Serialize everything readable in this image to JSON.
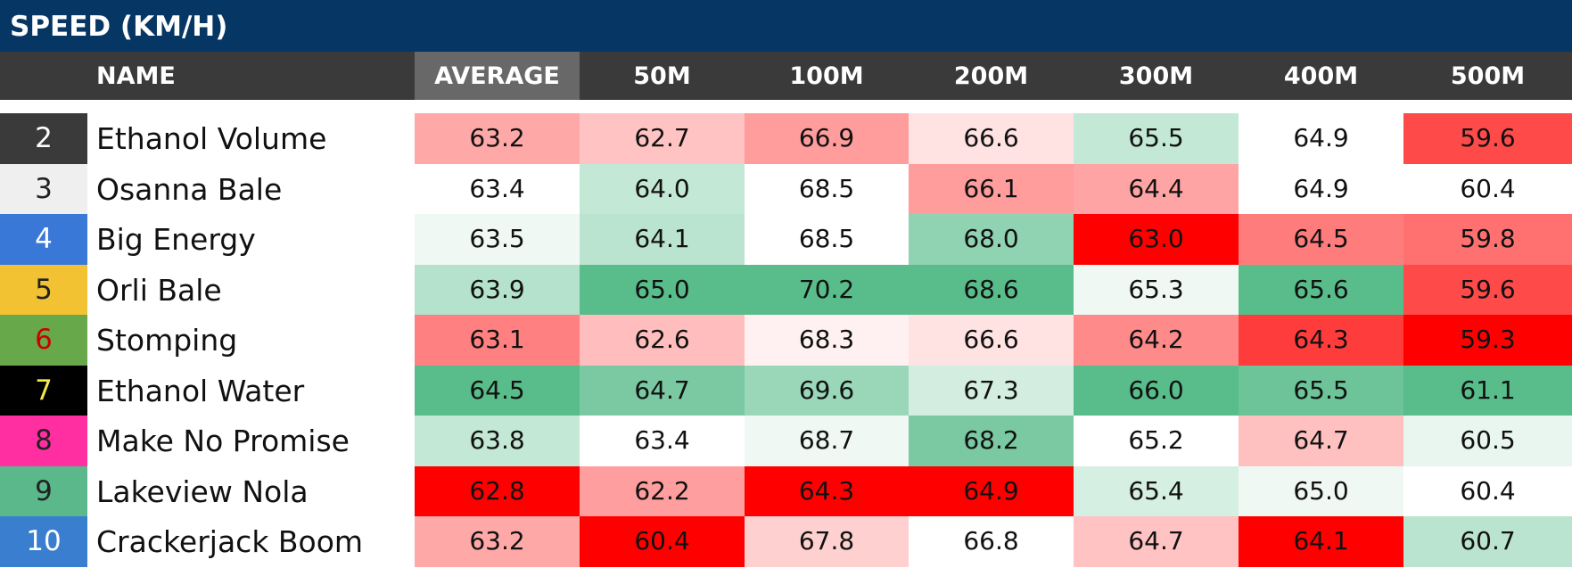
{
  "title": "SPEED (KM/H)",
  "chart_data": {
    "type": "table",
    "title": "SPEED (KM/H)",
    "columns": [
      "NAME",
      "AVERAGE",
      "50M",
      "100M",
      "200M",
      "300M",
      "400M",
      "500M"
    ],
    "rows": [
      {
        "number": "2",
        "name": "Ethanol Volume",
        "values": [
          "63.2",
          "62.7",
          "66.9",
          "66.6",
          "65.5",
          "64.9",
          "59.6"
        ],
        "colors": [
          "#ffa8a8",
          "#ffc3c3",
          "#ff9c9c",
          "#ffe3e3",
          "#c3e8d5",
          "#ffffff",
          "#ff4a4a"
        ],
        "num_bg": "#3a3a3a",
        "num_color": "#ffffff"
      },
      {
        "number": "3",
        "name": "Osanna Bale",
        "values": [
          "63.4",
          "64.0",
          "68.5",
          "66.1",
          "64.4",
          "64.9",
          "60.4"
        ],
        "colors": [
          "#ffffff",
          "#c3e8d5",
          "#ffffff",
          "#ff9c9c",
          "#ffa4a4",
          "#ffffff",
          "#ffffff"
        ],
        "num_bg": "#efefef",
        "num_color": "#222222"
      },
      {
        "number": "4",
        "name": "Big Energy",
        "values": [
          "63.5",
          "64.1",
          "68.5",
          "68.0",
          "63.0",
          "64.5",
          "59.8"
        ],
        "colors": [
          "#eff8f3",
          "#bae4cf",
          "#ffffff",
          "#8fd3b2",
          "#ff0000",
          "#ff7c7c",
          "#ff7070"
        ],
        "num_bg": "#3a78d8",
        "num_color": "#ffffff"
      },
      {
        "number": "5",
        "name": "Orli Bale",
        "values": [
          "63.9",
          "65.0",
          "70.2",
          "68.6",
          "65.3",
          "65.6",
          "59.6"
        ],
        "colors": [
          "#b5e2cc",
          "#58bd8b",
          "#58bd8b",
          "#58bd8b",
          "#eff8f3",
          "#58bd8b",
          "#ff4a4a"
        ],
        "num_bg": "#f2c232",
        "num_color": "#222222"
      },
      {
        "number": "6",
        "name": "Stomping",
        "values": [
          "63.1",
          "62.6",
          "68.3",
          "66.6",
          "64.2",
          "64.3",
          "59.3"
        ],
        "colors": [
          "#ff8080",
          "#ffbdbd",
          "#fff1f1",
          "#ffe3e3",
          "#ff8a8a",
          "#ff3c3c",
          "#ff0000"
        ],
        "num_bg": "#67a84a",
        "num_color": "#cc0000"
      },
      {
        "number": "7",
        "name": "Ethanol Water",
        "values": [
          "64.5",
          "64.7",
          "69.6",
          "67.3",
          "66.0",
          "65.5",
          "61.1"
        ],
        "colors": [
          "#58bd8b",
          "#7ac9a2",
          "#9ad7b8",
          "#d3eee0",
          "#58bd8b",
          "#6cc498",
          "#58bd8b"
        ],
        "num_bg": "#000000",
        "num_color": "#f5e84a"
      },
      {
        "number": "8",
        "name": "Make No Promise",
        "values": [
          "63.8",
          "63.4",
          "68.7",
          "68.2",
          "65.2",
          "64.7",
          "60.5"
        ],
        "colors": [
          "#c3e8d5",
          "#ffffff",
          "#eff8f3",
          "#7ac9a2",
          "#ffffff",
          "#ffc0c0",
          "#e9f6ef"
        ],
        "num_bg": "#ff2fa2",
        "num_color": "#222222"
      },
      {
        "number": "9",
        "name": "Lakeview Nola",
        "values": [
          "62.8",
          "62.2",
          "64.3",
          "64.9",
          "65.4",
          "65.0",
          "60.4"
        ],
        "colors": [
          "#ff0000",
          "#ff9e9e",
          "#ff0000",
          "#ff0000",
          "#d5efe2",
          "#eff8f3",
          "#ffffff"
        ],
        "num_bg": "#5ab88a",
        "num_color": "#222222"
      },
      {
        "number": "10",
        "name": "Crackerjack Boom",
        "values": [
          "63.2",
          "60.4",
          "67.8",
          "66.8",
          "64.7",
          "64.1",
          "60.7"
        ],
        "colors": [
          "#ffa8a8",
          "#ff0000",
          "#ffd0d0",
          "#ffffff",
          "#ffc3c3",
          "#ff0000",
          "#bae4cf"
        ],
        "num_bg": "#3a7fcf",
        "num_color": "#ffffff"
      }
    ]
  }
}
